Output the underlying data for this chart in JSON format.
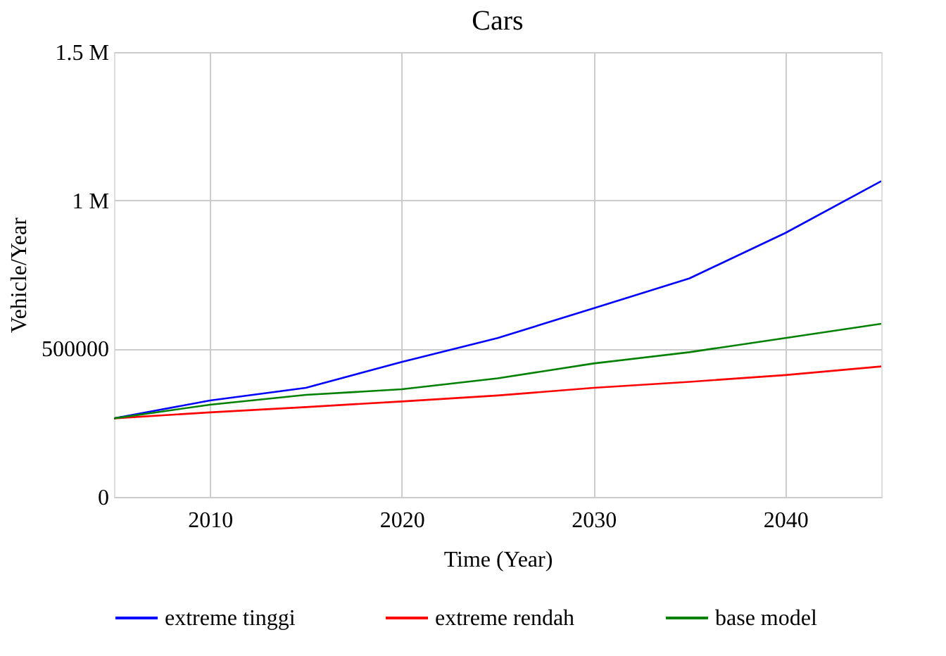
{
  "chart_data": {
    "type": "line",
    "title": "Cars",
    "xlabel": "Time (Year)",
    "ylabel": "Vehicle/Year",
    "x": [
      2005,
      2010,
      2015,
      2020,
      2025,
      2030,
      2035,
      2040,
      2045
    ],
    "series": [
      {
        "name": "extreme tinggi",
        "color": "#0000ff",
        "values": [
          265000,
          325000,
          368000,
          455000,
          536000,
          636000,
          737000,
          890000,
          1065000
        ]
      },
      {
        "name": "extreme rendah",
        "color": "#ff0000",
        "values": [
          265000,
          285000,
          303000,
          322000,
          342000,
          368000,
          388000,
          411000,
          440000
        ]
      },
      {
        "name": "base model",
        "color": "#008000",
        "values": [
          265000,
          311000,
          344000,
          363000,
          400000,
          450000,
          488000,
          536000,
          584000
        ]
      }
    ],
    "xlim": [
      2005,
      2045
    ],
    "xticks": [
      2010,
      2020,
      2030,
      2040
    ],
    "ylim": [
      0,
      1500000
    ],
    "yticks": [
      0,
      500000,
      {
        "value": 1000000,
        "label": "1 M"
      },
      {
        "value": 1500000,
        "label": "1.5 M"
      }
    ],
    "grid": true,
    "legend": "bottom",
    "line_style": "solid",
    "marker": "none"
  }
}
